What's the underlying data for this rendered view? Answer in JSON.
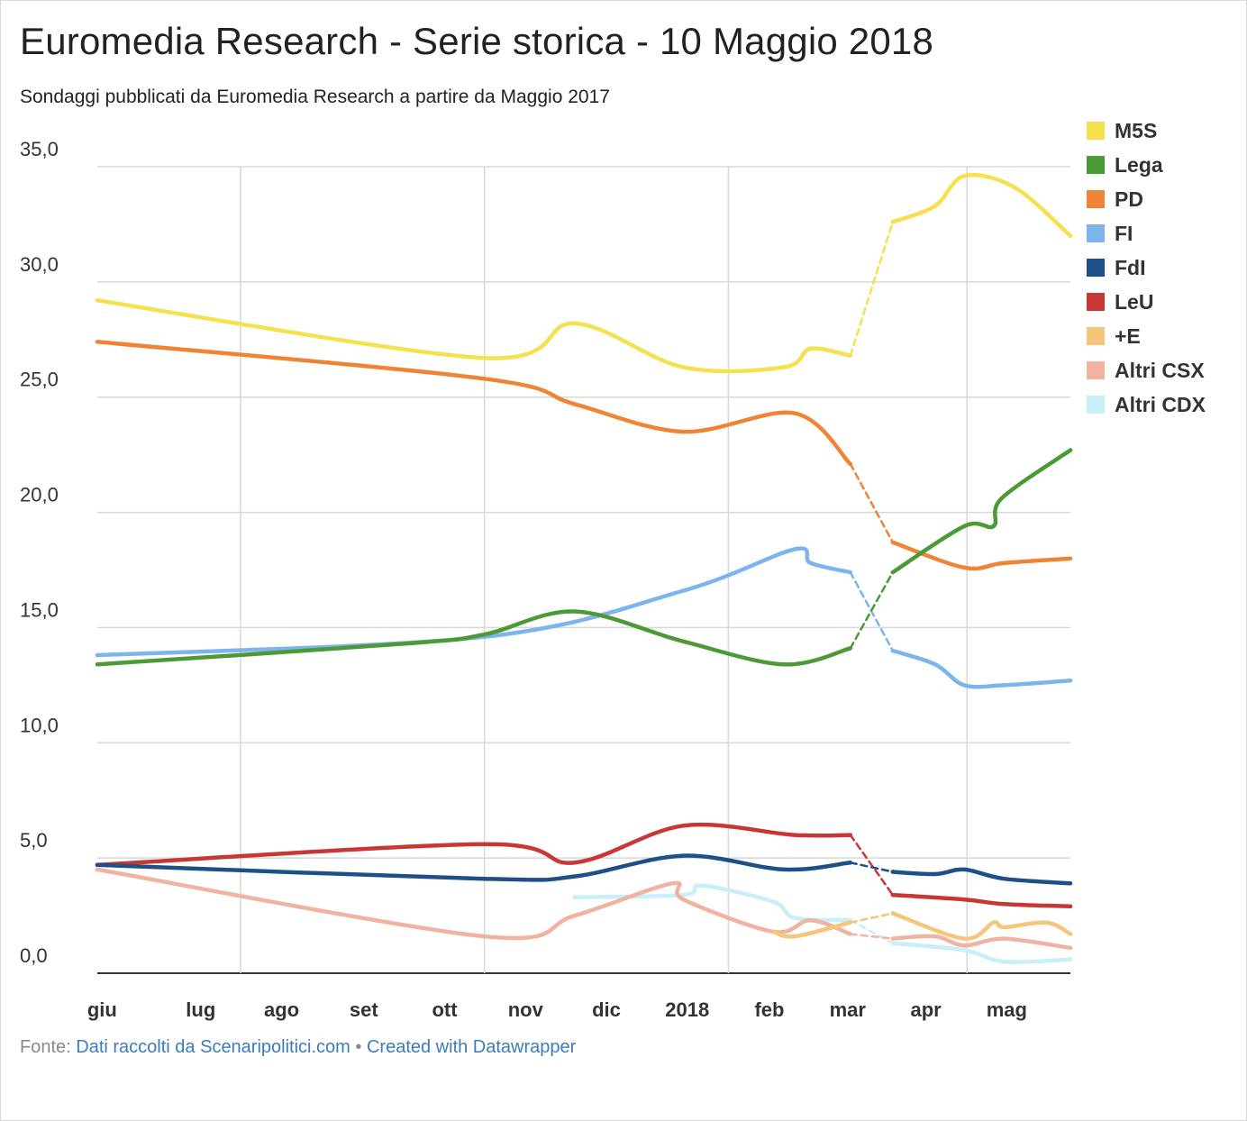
{
  "header": {
    "title": "Euromedia Research - Serie storica - 10 Maggio 2018",
    "subtitle": "Sondaggi pubblicati da Euromedia Research a partire da Maggio 2017"
  },
  "footer": {
    "source_label": "Fonte:",
    "source_link": "Dati raccolti da Scenaripolitici.com",
    "separator": "•",
    "credit_link": "Created with Datawrapper"
  },
  "chart_data": {
    "type": "line",
    "title": "Euromedia Research - Serie storica - 10 Maggio 2018",
    "subtitle": "Sondaggi pubblicati da Euromedia Research a partire da Maggio 2017",
    "xlabel": "",
    "ylabel": "",
    "ylim": [
      0,
      35
    ],
    "yticks": [
      0,
      5,
      10,
      15,
      20,
      25,
      30,
      35
    ],
    "ytick_labels": [
      "0,0",
      "5,0",
      "10,0",
      "15,0",
      "20,0",
      "25,0",
      "30,0",
      "35,0"
    ],
    "xlim": [
      "2017-05-08",
      "2018-05-10"
    ],
    "xticks": [
      "2017-06-01",
      "2017-07-01",
      "2017-08-01",
      "2017-09-01",
      "2017-10-01",
      "2017-11-01",
      "2017-12-01",
      "2018-01-01",
      "2018-02-01",
      "2018-03-01",
      "2018-04-01",
      "2018-05-01"
    ],
    "xtick_labels": [
      "giu",
      "lug",
      "ago",
      "set",
      "ott",
      "nov",
      "dic",
      "2018",
      "feb",
      "mar",
      "apr",
      "mag"
    ],
    "grid": true,
    "legend": "right",
    "election_gap": [
      "2018-02-16",
      "2018-03-04"
    ],
    "series": [
      {
        "name": "M5S",
        "color": "#f5e04f",
        "points": [
          [
            "2017-05-08",
            29.2
          ],
          [
            "2017-10-01",
            26.7
          ],
          [
            "2017-11-04",
            28.2
          ],
          [
            "2017-12-15",
            26.3
          ],
          [
            "2018-01-22",
            26.3
          ],
          [
            "2018-02-01",
            27.1
          ],
          [
            "2018-02-16",
            26.8
          ],
          [
            "2018-03-04",
            32.6
          ],
          [
            "2018-03-20",
            33.3
          ],
          [
            "2018-03-31",
            34.6
          ],
          [
            "2018-04-19",
            34.1
          ],
          [
            "2018-05-10",
            32.0
          ]
        ]
      },
      {
        "name": "Lega",
        "color": "#4c9a36",
        "points": [
          [
            "2017-05-08",
            13.4
          ],
          [
            "2017-09-01",
            14.3
          ],
          [
            "2017-10-01",
            14.7
          ],
          [
            "2017-11-04",
            15.7
          ],
          [
            "2017-12-15",
            14.4
          ],
          [
            "2018-01-22",
            13.4
          ],
          [
            "2018-02-16",
            14.1
          ],
          [
            "2018-03-04",
            17.4
          ],
          [
            "2018-03-31",
            19.4
          ],
          [
            "2018-04-11",
            19.4
          ],
          [
            "2018-04-14",
            20.6
          ],
          [
            "2018-05-10",
            22.7
          ]
        ]
      },
      {
        "name": "PD",
        "color": "#ef8436",
        "points": [
          [
            "2017-05-08",
            27.4
          ],
          [
            "2017-10-01",
            25.8
          ],
          [
            "2017-11-04",
            24.7
          ],
          [
            "2017-12-15",
            23.5
          ],
          [
            "2018-01-26",
            24.3
          ],
          [
            "2018-02-16",
            22.1
          ],
          [
            "2018-03-04",
            18.7
          ],
          [
            "2018-03-31",
            17.6
          ],
          [
            "2018-04-15",
            17.8
          ],
          [
            "2018-05-10",
            18.0
          ]
        ]
      },
      {
        "name": "FI",
        "color": "#7eb4ed",
        "points": [
          [
            "2017-05-08",
            13.8
          ],
          [
            "2017-10-01",
            14.6
          ],
          [
            "2017-12-15",
            16.6
          ],
          [
            "2018-01-26",
            18.4
          ],
          [
            "2018-02-01",
            17.8
          ],
          [
            "2018-02-16",
            17.4
          ],
          [
            "2018-03-04",
            14.0
          ],
          [
            "2018-03-20",
            13.4
          ],
          [
            "2018-03-31",
            12.5
          ],
          [
            "2018-04-15",
            12.5
          ],
          [
            "2018-05-10",
            12.7
          ]
        ]
      },
      {
        "name": "FdI",
        "color": "#1e4f88",
        "points": [
          [
            "2017-05-08",
            4.7
          ],
          [
            "2017-10-01",
            4.1
          ],
          [
            "2017-11-04",
            4.2
          ],
          [
            "2017-12-15",
            5.1
          ],
          [
            "2018-01-22",
            4.5
          ],
          [
            "2018-02-16",
            4.8
          ],
          [
            "2018-03-04",
            4.4
          ],
          [
            "2018-03-20",
            4.3
          ],
          [
            "2018-03-31",
            4.5
          ],
          [
            "2018-04-15",
            4.1
          ],
          [
            "2018-05-10",
            3.9
          ]
        ]
      },
      {
        "name": "LeU",
        "color": "#c93636",
        "points": [
          [
            "2017-05-08",
            4.7
          ],
          [
            "2017-10-01",
            5.6
          ],
          [
            "2017-11-04",
            4.8
          ],
          [
            "2017-12-15",
            6.4
          ],
          [
            "2018-01-26",
            6.0
          ],
          [
            "2018-02-16",
            6.0
          ],
          [
            "2018-03-04",
            3.4
          ],
          [
            "2018-03-31",
            3.2
          ],
          [
            "2018-04-15",
            3.0
          ],
          [
            "2018-05-10",
            2.9
          ]
        ]
      },
      {
        "name": "+E",
        "color": "#f5c57a",
        "points": [
          [
            "2018-01-18",
            1.8
          ],
          [
            "2018-01-26",
            1.6
          ],
          [
            "2018-02-16",
            2.2
          ],
          [
            "2018-03-04",
            2.6
          ],
          [
            "2018-03-31",
            1.5
          ],
          [
            "2018-04-11",
            2.2
          ],
          [
            "2018-04-15",
            2.0
          ],
          [
            "2018-05-01",
            2.2
          ],
          [
            "2018-05-10",
            1.7
          ]
        ]
      },
      {
        "name": "Altri CSX",
        "color": "#f1b3a1",
        "points": [
          [
            "2017-05-08",
            4.5
          ],
          [
            "2017-10-01",
            1.6
          ],
          [
            "2017-11-04",
            2.5
          ],
          [
            "2017-12-11",
            3.9
          ],
          [
            "2017-12-15",
            3.2
          ],
          [
            "2018-01-18",
            1.8
          ],
          [
            "2018-02-01",
            2.3
          ],
          [
            "2018-02-16",
            1.7
          ],
          [
            "2018-03-04",
            1.5
          ],
          [
            "2018-03-20",
            1.6
          ],
          [
            "2018-03-31",
            1.2
          ],
          [
            "2018-04-15",
            1.5
          ],
          [
            "2018-05-10",
            1.1
          ]
        ]
      },
      {
        "name": "Altri CDX",
        "color": "#c8eef9",
        "points": [
          [
            "2017-11-04",
            3.3
          ],
          [
            "2017-12-15",
            3.4
          ],
          [
            "2017-12-22",
            3.8
          ],
          [
            "2018-01-18",
            3.1
          ],
          [
            "2018-01-26",
            2.4
          ],
          [
            "2018-02-16",
            2.3
          ],
          [
            "2018-03-04",
            1.3
          ],
          [
            "2018-03-31",
            1.0
          ],
          [
            "2018-04-15",
            0.5
          ],
          [
            "2018-05-10",
            0.6
          ]
        ]
      }
    ]
  }
}
